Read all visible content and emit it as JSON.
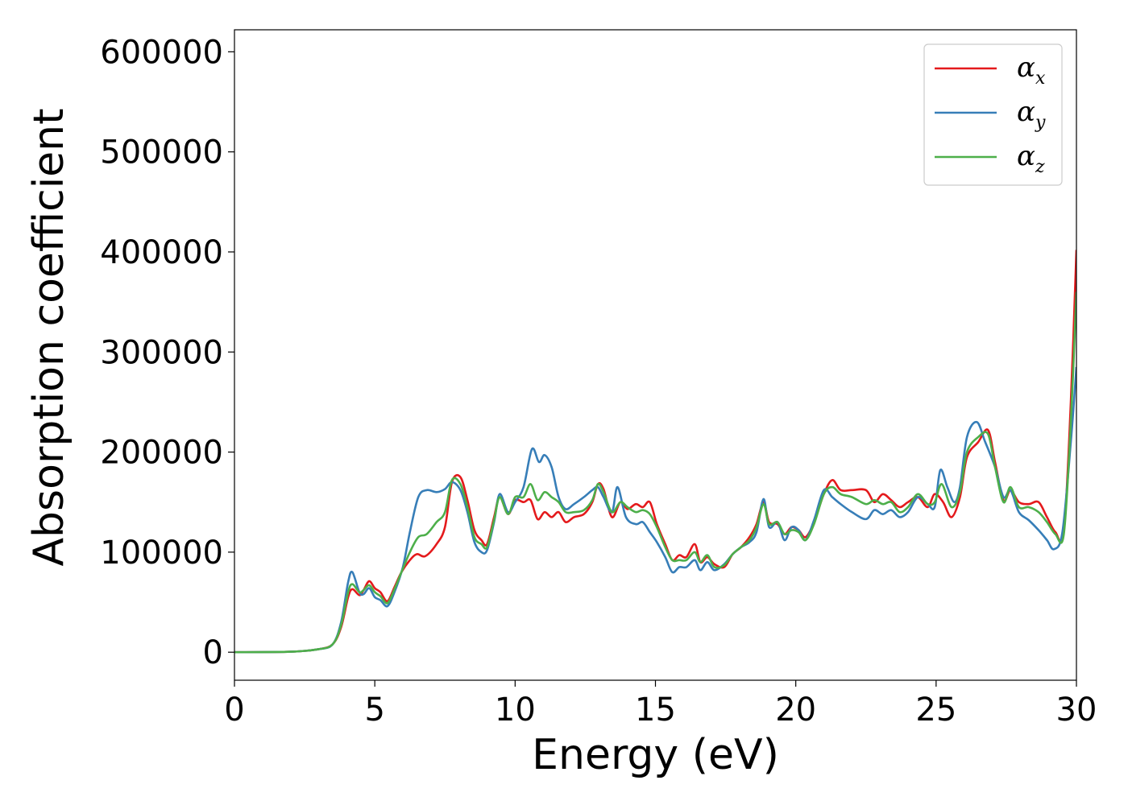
{
  "chart_data": {
    "type": "line",
    "title": "",
    "xlabel": "Energy (eV)",
    "ylabel": "Absorption coefficient",
    "xlim": [
      0,
      30
    ],
    "ylim": [
      -28000,
      622000
    ],
    "xticks": [
      0,
      5,
      10,
      15,
      20,
      25,
      30
    ],
    "yticks": [
      0,
      100000,
      200000,
      300000,
      400000,
      500000,
      600000
    ],
    "grid": false,
    "legend_position": "top-right",
    "series": [
      {
        "name": "α",
        "name_subscript": "x",
        "color": "#e41a1c",
        "points": [
          [
            0,
            0
          ],
          [
            2,
            500
          ],
          [
            3,
            3000
          ],
          [
            3.5,
            8000
          ],
          [
            3.8,
            25000
          ],
          [
            4.05,
            55000
          ],
          [
            4.2,
            63000
          ],
          [
            4.45,
            57000
          ],
          [
            4.6,
            62000
          ],
          [
            4.8,
            71000
          ],
          [
            5.0,
            64000
          ],
          [
            5.2,
            60000
          ],
          [
            5.45,
            51000
          ],
          [
            5.7,
            65000
          ],
          [
            5.95,
            80000
          ],
          [
            6.25,
            92000
          ],
          [
            6.5,
            98000
          ],
          [
            6.8,
            96000
          ],
          [
            7.2,
            108000
          ],
          [
            7.5,
            125000
          ],
          [
            7.75,
            170000
          ],
          [
            8.05,
            175000
          ],
          [
            8.3,
            152000
          ],
          [
            8.55,
            122000
          ],
          [
            8.8,
            112000
          ],
          [
            9.0,
            108000
          ],
          [
            9.25,
            135000
          ],
          [
            9.45,
            155000
          ],
          [
            9.75,
            138000
          ],
          [
            10.0,
            152000
          ],
          [
            10.3,
            150000
          ],
          [
            10.55,
            152000
          ],
          [
            10.8,
            133000
          ],
          [
            11.05,
            140000
          ],
          [
            11.3,
            135000
          ],
          [
            11.55,
            140000
          ],
          [
            11.8,
            130000
          ],
          [
            12.1,
            135000
          ],
          [
            12.45,
            138000
          ],
          [
            12.75,
            150000
          ],
          [
            12.95,
            168000
          ],
          [
            13.15,
            163000
          ],
          [
            13.45,
            135000
          ],
          [
            13.75,
            150000
          ],
          [
            14.0,
            143000
          ],
          [
            14.3,
            148000
          ],
          [
            14.55,
            145000
          ],
          [
            14.8,
            150000
          ],
          [
            15.05,
            128000
          ],
          [
            15.35,
            108000
          ],
          [
            15.6,
            92000
          ],
          [
            15.85,
            97000
          ],
          [
            16.1,
            95000
          ],
          [
            16.4,
            108000
          ],
          [
            16.6,
            90000
          ],
          [
            16.85,
            95000
          ],
          [
            17.1,
            88000
          ],
          [
            17.45,
            85000
          ],
          [
            17.75,
            98000
          ],
          [
            18.05,
            105000
          ],
          [
            18.35,
            115000
          ],
          [
            18.6,
            128000
          ],
          [
            18.85,
            150000
          ],
          [
            19.05,
            130000
          ],
          [
            19.35,
            128000
          ],
          [
            19.6,
            118000
          ],
          [
            19.85,
            125000
          ],
          [
            20.1,
            122000
          ],
          [
            20.35,
            115000
          ],
          [
            20.65,
            130000
          ],
          [
            21.0,
            158000
          ],
          [
            21.3,
            172000
          ],
          [
            21.6,
            162000
          ],
          [
            22.0,
            162000
          ],
          [
            22.5,
            162000
          ],
          [
            22.8,
            150000
          ],
          [
            23.1,
            158000
          ],
          [
            23.4,
            152000
          ],
          [
            23.7,
            145000
          ],
          [
            24.0,
            150000
          ],
          [
            24.35,
            155000
          ],
          [
            24.7,
            145000
          ],
          [
            24.95,
            158000
          ],
          [
            25.25,
            150000
          ],
          [
            25.55,
            135000
          ],
          [
            25.85,
            155000
          ],
          [
            26.1,
            195000
          ],
          [
            26.5,
            210000
          ],
          [
            26.85,
            222000
          ],
          [
            27.1,
            190000
          ],
          [
            27.4,
            152000
          ],
          [
            27.65,
            162000
          ],
          [
            27.95,
            150000
          ],
          [
            28.3,
            148000
          ],
          [
            28.65,
            150000
          ],
          [
            28.95,
            135000
          ],
          [
            29.25,
            120000
          ],
          [
            29.55,
            120000
          ],
          [
            29.8,
            250000
          ],
          [
            30.0,
            402000
          ]
        ]
      },
      {
        "name": "α",
        "name_subscript": "y",
        "color": "#377eb8",
        "points": [
          [
            0,
            0
          ],
          [
            2,
            500
          ],
          [
            3,
            3000
          ],
          [
            3.5,
            8000
          ],
          [
            3.8,
            30000
          ],
          [
            4.05,
            70000
          ],
          [
            4.2,
            80000
          ],
          [
            4.45,
            60000
          ],
          [
            4.6,
            58000
          ],
          [
            4.8,
            64000
          ],
          [
            5.0,
            55000
          ],
          [
            5.2,
            52000
          ],
          [
            5.45,
            46000
          ],
          [
            5.7,
            60000
          ],
          [
            6.0,
            85000
          ],
          [
            6.25,
            120000
          ],
          [
            6.55,
            155000
          ],
          [
            6.85,
            162000
          ],
          [
            7.2,
            160000
          ],
          [
            7.5,
            163000
          ],
          [
            7.75,
            170000
          ],
          [
            8.05,
            162000
          ],
          [
            8.3,
            140000
          ],
          [
            8.55,
            110000
          ],
          [
            8.8,
            100000
          ],
          [
            9.0,
            102000
          ],
          [
            9.25,
            130000
          ],
          [
            9.45,
            158000
          ],
          [
            9.75,
            140000
          ],
          [
            10.0,
            150000
          ],
          [
            10.3,
            165000
          ],
          [
            10.6,
            203000
          ],
          [
            10.85,
            190000
          ],
          [
            11.05,
            197000
          ],
          [
            11.3,
            185000
          ],
          [
            11.55,
            155000
          ],
          [
            11.8,
            143000
          ],
          [
            12.1,
            148000
          ],
          [
            12.45,
            155000
          ],
          [
            12.75,
            162000
          ],
          [
            12.95,
            165000
          ],
          [
            13.15,
            155000
          ],
          [
            13.45,
            140000
          ],
          [
            13.65,
            165000
          ],
          [
            13.95,
            135000
          ],
          [
            14.3,
            128000
          ],
          [
            14.55,
            130000
          ],
          [
            14.8,
            120000
          ],
          [
            15.05,
            110000
          ],
          [
            15.35,
            95000
          ],
          [
            15.6,
            80000
          ],
          [
            15.85,
            85000
          ],
          [
            16.1,
            85000
          ],
          [
            16.4,
            92000
          ],
          [
            16.6,
            82000
          ],
          [
            16.85,
            90000
          ],
          [
            17.1,
            82000
          ],
          [
            17.45,
            88000
          ],
          [
            17.75,
            98000
          ],
          [
            18.05,
            105000
          ],
          [
            18.35,
            110000
          ],
          [
            18.6,
            120000
          ],
          [
            18.85,
            153000
          ],
          [
            19.05,
            125000
          ],
          [
            19.35,
            130000
          ],
          [
            19.6,
            112000
          ],
          [
            19.85,
            125000
          ],
          [
            20.1,
            122000
          ],
          [
            20.35,
            112000
          ],
          [
            20.65,
            132000
          ],
          [
            21.0,
            162000
          ],
          [
            21.3,
            155000
          ],
          [
            21.6,
            148000
          ],
          [
            22.0,
            140000
          ],
          [
            22.5,
            133000
          ],
          [
            22.8,
            142000
          ],
          [
            23.1,
            138000
          ],
          [
            23.4,
            142000
          ],
          [
            23.7,
            135000
          ],
          [
            24.0,
            140000
          ],
          [
            24.35,
            155000
          ],
          [
            24.7,
            148000
          ],
          [
            24.95,
            145000
          ],
          [
            25.15,
            182000
          ],
          [
            25.4,
            165000
          ],
          [
            25.65,
            150000
          ],
          [
            25.85,
            165000
          ],
          [
            26.1,
            215000
          ],
          [
            26.45,
            230000
          ],
          [
            26.75,
            210000
          ],
          [
            27.1,
            185000
          ],
          [
            27.4,
            155000
          ],
          [
            27.65,
            162000
          ],
          [
            27.95,
            140000
          ],
          [
            28.3,
            132000
          ],
          [
            28.65,
            122000
          ],
          [
            28.95,
            112000
          ],
          [
            29.2,
            103000
          ],
          [
            29.5,
            120000
          ],
          [
            29.8,
            210000
          ],
          [
            30.0,
            285000
          ]
        ]
      },
      {
        "name": "α",
        "name_subscript": "z",
        "color": "#4daf4a",
        "points": [
          [
            0,
            0
          ],
          [
            2,
            500
          ],
          [
            3,
            3000
          ],
          [
            3.5,
            8000
          ],
          [
            3.8,
            27000
          ],
          [
            4.05,
            60000
          ],
          [
            4.2,
            68000
          ],
          [
            4.45,
            60000
          ],
          [
            4.6,
            62000
          ],
          [
            4.8,
            67000
          ],
          [
            5.0,
            60000
          ],
          [
            5.2,
            56000
          ],
          [
            5.45,
            49000
          ],
          [
            5.7,
            63000
          ],
          [
            5.95,
            80000
          ],
          [
            6.25,
            100000
          ],
          [
            6.55,
            115000
          ],
          [
            6.85,
            118000
          ],
          [
            7.2,
            130000
          ],
          [
            7.5,
            140000
          ],
          [
            7.75,
            172000
          ],
          [
            8.05,
            168000
          ],
          [
            8.3,
            145000
          ],
          [
            8.55,
            115000
          ],
          [
            8.8,
            108000
          ],
          [
            9.0,
            105000
          ],
          [
            9.25,
            132000
          ],
          [
            9.45,
            155000
          ],
          [
            9.75,
            138000
          ],
          [
            10.0,
            155000
          ],
          [
            10.3,
            155000
          ],
          [
            10.55,
            168000
          ],
          [
            10.8,
            152000
          ],
          [
            11.05,
            160000
          ],
          [
            11.3,
            155000
          ],
          [
            11.55,
            150000
          ],
          [
            11.8,
            140000
          ],
          [
            12.1,
            140000
          ],
          [
            12.45,
            142000
          ],
          [
            12.75,
            152000
          ],
          [
            12.95,
            168000
          ],
          [
            13.15,
            160000
          ],
          [
            13.45,
            140000
          ],
          [
            13.75,
            150000
          ],
          [
            14.0,
            145000
          ],
          [
            14.3,
            140000
          ],
          [
            14.55,
            142000
          ],
          [
            14.8,
            138000
          ],
          [
            15.05,
            125000
          ],
          [
            15.35,
            105000
          ],
          [
            15.6,
            92000
          ],
          [
            15.85,
            92000
          ],
          [
            16.1,
            92000
          ],
          [
            16.4,
            100000
          ],
          [
            16.6,
            90000
          ],
          [
            16.85,
            97000
          ],
          [
            17.1,
            85000
          ],
          [
            17.45,
            87000
          ],
          [
            17.75,
            98000
          ],
          [
            18.05,
            105000
          ],
          [
            18.35,
            112000
          ],
          [
            18.6,
            125000
          ],
          [
            18.85,
            148000
          ],
          [
            19.05,
            128000
          ],
          [
            19.35,
            130000
          ],
          [
            19.6,
            118000
          ],
          [
            19.85,
            122000
          ],
          [
            20.1,
            120000
          ],
          [
            20.35,
            112000
          ],
          [
            20.65,
            128000
          ],
          [
            21.0,
            158000
          ],
          [
            21.3,
            165000
          ],
          [
            21.6,
            158000
          ],
          [
            22.0,
            155000
          ],
          [
            22.5,
            148000
          ],
          [
            22.8,
            152000
          ],
          [
            23.1,
            148000
          ],
          [
            23.4,
            150000
          ],
          [
            23.7,
            140000
          ],
          [
            24.0,
            145000
          ],
          [
            24.35,
            158000
          ],
          [
            24.7,
            148000
          ],
          [
            24.95,
            150000
          ],
          [
            25.2,
            168000
          ],
          [
            25.55,
            145000
          ],
          [
            25.85,
            160000
          ],
          [
            26.1,
            200000
          ],
          [
            26.5,
            215000
          ],
          [
            26.85,
            218000
          ],
          [
            27.1,
            185000
          ],
          [
            27.4,
            150000
          ],
          [
            27.65,
            165000
          ],
          [
            27.95,
            145000
          ],
          [
            28.3,
            145000
          ],
          [
            28.65,
            140000
          ],
          [
            28.95,
            130000
          ],
          [
            29.25,
            118000
          ],
          [
            29.55,
            118000
          ],
          [
            29.8,
            230000
          ],
          [
            30.0,
            360000
          ]
        ]
      }
    ]
  }
}
